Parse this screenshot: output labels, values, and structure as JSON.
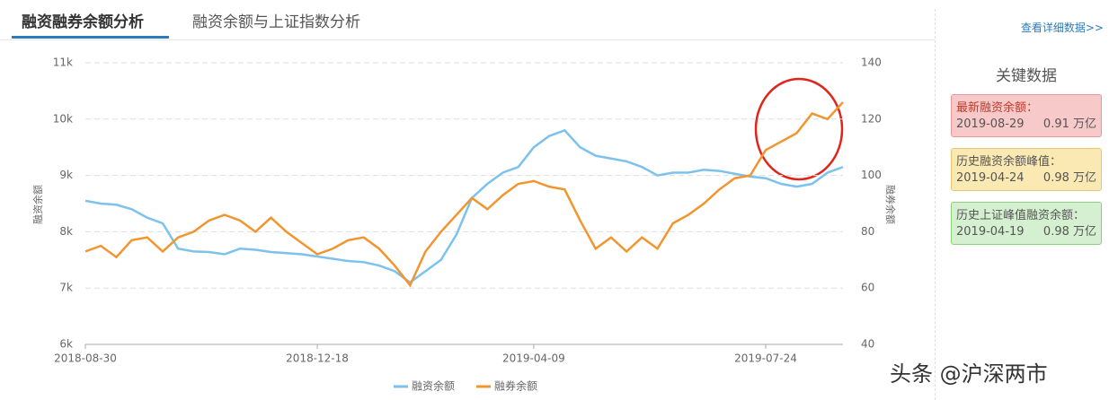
{
  "tabs": [
    "融资融券余额分析",
    "融资余额与上证指数分析"
  ],
  "link": "查看详细数据>>",
  "chart_data": {
    "type": "line",
    "categories": [
      "2018-08-30",
      null,
      null,
      null,
      null,
      null,
      null,
      null,
      null,
      null,
      null,
      null,
      null,
      null,
      null,
      "2018-12-18",
      null,
      null,
      null,
      null,
      null,
      null,
      null,
      null,
      null,
      null,
      null,
      null,
      null,
      "2019-04-09",
      null,
      null,
      null,
      null,
      null,
      null,
      null,
      null,
      null,
      null,
      null,
      null,
      null,
      null,
      "2019-07-24",
      null,
      null,
      null,
      null,
      null
    ],
    "series": [
      {
        "name": "融资余额",
        "color": "#7cc2ec",
        "axis": "y",
        "values": [
          8550,
          8500,
          8480,
          8400,
          8250,
          8150,
          7700,
          7650,
          7640,
          7600,
          7700,
          7680,
          7640,
          7620,
          7600,
          7560,
          7520,
          7480,
          7460,
          7400,
          7300,
          7100,
          7300,
          7500,
          7950,
          8600,
          8850,
          9050,
          9150,
          9500,
          9700,
          9800,
          9500,
          9350,
          9300,
          9250,
          9150,
          9000,
          9050,
          9050,
          9100,
          9080,
          9030,
          8980,
          8950,
          8850,
          8800,
          8850,
          9050,
          9150
        ]
      },
      {
        "name": "融券余额",
        "color": "#f2952f",
        "axis": "y2",
        "values": [
          73,
          75,
          71,
          77,
          78,
          73,
          78,
          80,
          84,
          86,
          84,
          80,
          85,
          80,
          76,
          72,
          74,
          77,
          78,
          74,
          68,
          61,
          73,
          80,
          86,
          92,
          88,
          93,
          97,
          98,
          96,
          95,
          84,
          74,
          78,
          73,
          78,
          74,
          83,
          86,
          90,
          95,
          99,
          100,
          109,
          112,
          115,
          122,
          120,
          126
        ]
      }
    ],
    "ylabel": "融资余额",
    "y2label": "融券余额",
    "ylim": [
      6000,
      11000
    ],
    "yticks": [
      {
        "value": 6000,
        "label": "6k"
      },
      {
        "value": 7000,
        "label": "7k"
      },
      {
        "value": 8000,
        "label": "8k"
      },
      {
        "value": 9000,
        "label": "9k"
      },
      {
        "value": 10000,
        "label": "10k"
      },
      {
        "value": 11000,
        "label": "11k"
      }
    ],
    "y2lim": [
      40,
      140
    ],
    "y2ticks": [
      40,
      60,
      80,
      100,
      120,
      140
    ],
    "grid": true,
    "legend": "bottom"
  },
  "panel": {
    "title": "关键数据",
    "items": [
      {
        "label": "最新融资余额：",
        "date": "2019-08-29",
        "value": "0.91 万亿"
      },
      {
        "label": "历史融资余额峰值：",
        "date": "2019-04-24",
        "value": "0.98 万亿"
      },
      {
        "label": "历史上证峰值融资余额：",
        "date": "2019-04-19",
        "value": "0.98 万亿"
      }
    ]
  },
  "watermark": "头条 @沪深两市"
}
